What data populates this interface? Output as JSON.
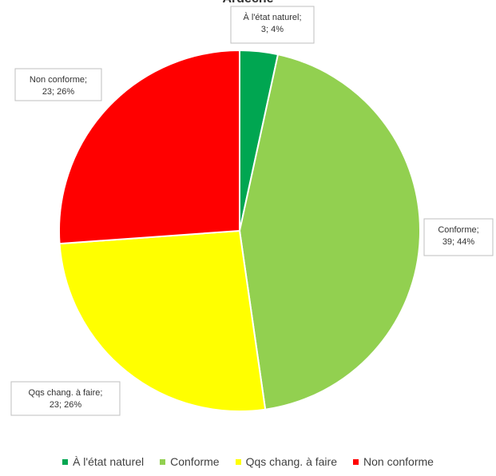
{
  "chart_data": {
    "type": "pie",
    "title": "Ardèche",
    "categories": [
      "À l'état naturel",
      "Conforme",
      "Qqs chang. à faire",
      "Non conforme"
    ],
    "values": [
      3,
      39,
      23,
      23
    ],
    "percentages": [
      4,
      44,
      26,
      26
    ],
    "colors": [
      "#00a651",
      "#92d050",
      "#ffff00",
      "#ff0000"
    ],
    "data_labels": [
      [
        "À l'état naturel;",
        "3; 4%"
      ],
      [
        "Conforme;",
        "39; 44%"
      ],
      [
        "Qqs chang. à faire;",
        "23; 26%"
      ],
      [
        "Non conforme;",
        "23; 26%"
      ]
    ],
    "start_slice_color_note": "green",
    "legend_position": "bottom"
  }
}
